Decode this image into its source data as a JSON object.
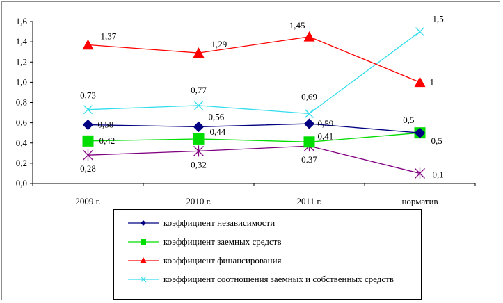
{
  "chart_data": {
    "type": "line",
    "categories": [
      "2009 г.",
      "2010 г.",
      "2011 г.",
      "норматив"
    ],
    "ylim": [
      0,
      1.6
    ],
    "yticks": [
      "0,0",
      "0,2",
      "0,4",
      "0,6",
      "0,8",
      "1,0",
      "1,2",
      "1,4",
      "1,6"
    ],
    "grid": false,
    "legend_position": "bottom",
    "series": [
      {
        "name": "коэффициент независимости",
        "values": [
          0.58,
          0.56,
          0.59,
          0.5
        ],
        "labels": [
          "0,58",
          "0,56",
          "0,59",
          "0,5"
        ],
        "color": "#000080",
        "marker": "diamond"
      },
      {
        "name": "коэффициент заемных средств",
        "values": [
          0.42,
          0.44,
          0.41,
          0.5
        ],
        "labels": [
          "0,42",
          "0,44",
          "0,41",
          "0,5"
        ],
        "color": "#00dd00",
        "marker": "square"
      },
      {
        "name": "коэффициент финансирования",
        "values": [
          1.37,
          1.29,
          1.45,
          1.0
        ],
        "labels": [
          "1,37",
          "1,29",
          "1,45",
          "1"
        ],
        "color": "#ff0000",
        "marker": "triangle"
      },
      {
        "name": "коэффициент соотношения заемных и собственных средств",
        "values": [
          0.73,
          0.77,
          0.69,
          1.5
        ],
        "labels": [
          "0,73",
          "0,77",
          "0,69",
          "1,5"
        ],
        "color": "#33ddee",
        "marker": "x"
      },
      {
        "values": [
          0.28,
          0.32,
          0.37,
          0.1
        ],
        "labels": [
          "0,28",
          "0,32",
          "0.37",
          "0,1"
        ],
        "color": "#800080",
        "marker": "star"
      }
    ]
  }
}
